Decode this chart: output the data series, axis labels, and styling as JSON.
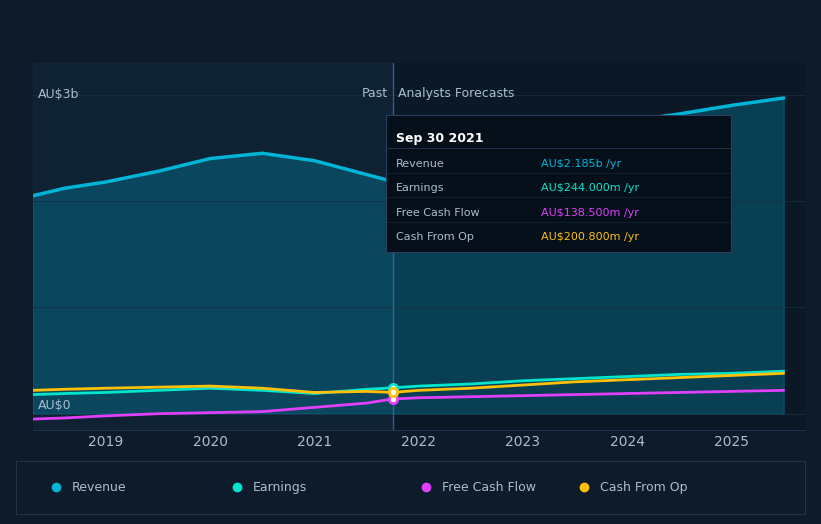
{
  "bg_color": "#0d1b2a",
  "plot_bg_past": "#0f2035",
  "plot_bg_forecast": "#0a1520",
  "divider_color": "#4a6fa5",
  "title_text": "Sep 30 2021",
  "tooltip": {
    "bg": "#050f1a",
    "border": "#2a3f5f",
    "title": "Sep 30 2021",
    "rows": [
      {
        "label": "Revenue",
        "value": "AU$2.185b /yr",
        "color": "#00b4d8"
      },
      {
        "label": "Earnings",
        "value": "AU$244.000m /yr",
        "color": "#00e5cc"
      },
      {
        "label": "Free Cash Flow",
        "value": "AU$138.500m /yr",
        "color": "#e040fb"
      },
      {
        "label": "Cash From Op",
        "value": "AU$200.800m /yr",
        "color": "#ffc107"
      }
    ]
  },
  "ylabel_top": "AU$3b",
  "ylabel_bottom": "AU$0",
  "past_label": "Past",
  "forecast_label": "Analysts Forecasts",
  "xmin": 2018.3,
  "xmax": 2025.7,
  "ymin": -0.15,
  "ymax": 3.3,
  "divider_x": 2021.75,
  "series": {
    "revenue": {
      "color": "#00b4d8",
      "linewidth": 2.5,
      "x": [
        2018.3,
        2018.6,
        2019.0,
        2019.5,
        2020.0,
        2020.5,
        2021.0,
        2021.5,
        2021.75,
        2022.0,
        2022.5,
        2023.0,
        2023.5,
        2024.0,
        2024.5,
        2025.0,
        2025.5
      ],
      "y": [
        2.05,
        2.12,
        2.18,
        2.28,
        2.4,
        2.45,
        2.38,
        2.25,
        2.185,
        2.22,
        2.38,
        2.55,
        2.65,
        2.75,
        2.82,
        2.9,
        2.97
      ]
    },
    "earnings": {
      "color": "#00e5cc",
      "linewidth": 2.0,
      "x": [
        2018.3,
        2018.6,
        2019.0,
        2019.5,
        2020.0,
        2020.5,
        2021.0,
        2021.5,
        2021.75,
        2022.0,
        2022.5,
        2023.0,
        2023.5,
        2024.0,
        2024.5,
        2025.0,
        2025.5
      ],
      "y": [
        0.18,
        0.19,
        0.2,
        0.22,
        0.24,
        0.22,
        0.19,
        0.23,
        0.244,
        0.26,
        0.28,
        0.31,
        0.33,
        0.35,
        0.37,
        0.38,
        0.4
      ]
    },
    "fcf": {
      "color": "#e040fb",
      "linewidth": 2.0,
      "x": [
        2018.3,
        2018.6,
        2019.0,
        2019.5,
        2020.0,
        2020.5,
        2021.0,
        2021.5,
        2021.75,
        2022.0,
        2022.5,
        2023.0,
        2023.5,
        2024.0,
        2024.5,
        2025.0,
        2025.5
      ],
      "y": [
        -0.05,
        -0.04,
        -0.02,
        0.0,
        0.01,
        0.02,
        0.06,
        0.1,
        0.1385,
        0.15,
        0.16,
        0.17,
        0.18,
        0.19,
        0.2,
        0.21,
        0.22
      ]
    },
    "cashop": {
      "color": "#ffc107",
      "linewidth": 2.0,
      "x": [
        2018.3,
        2018.6,
        2019.0,
        2019.5,
        2020.0,
        2020.5,
        2021.0,
        2021.5,
        2021.75,
        2022.0,
        2022.5,
        2023.0,
        2023.5,
        2024.0,
        2024.5,
        2025.0,
        2025.5
      ],
      "y": [
        0.22,
        0.23,
        0.24,
        0.25,
        0.26,
        0.24,
        0.2,
        0.21,
        0.2008,
        0.22,
        0.24,
        0.27,
        0.3,
        0.32,
        0.34,
        0.36,
        0.38
      ]
    }
  },
  "legend": [
    {
      "label": "Revenue",
      "color": "#00b4d8"
    },
    {
      "label": "Earnings",
      "color": "#00e5cc"
    },
    {
      "label": "Free Cash Flow",
      "color": "#e040fb"
    },
    {
      "label": "Cash From Op",
      "color": "#ffc107"
    }
  ],
  "xticks": [
    2019,
    2020,
    2021,
    2022,
    2023,
    2024,
    2025
  ],
  "grid_color": "#1a2f45",
  "text_color": "#aabdd0",
  "axis_color": "#2a3f5f"
}
